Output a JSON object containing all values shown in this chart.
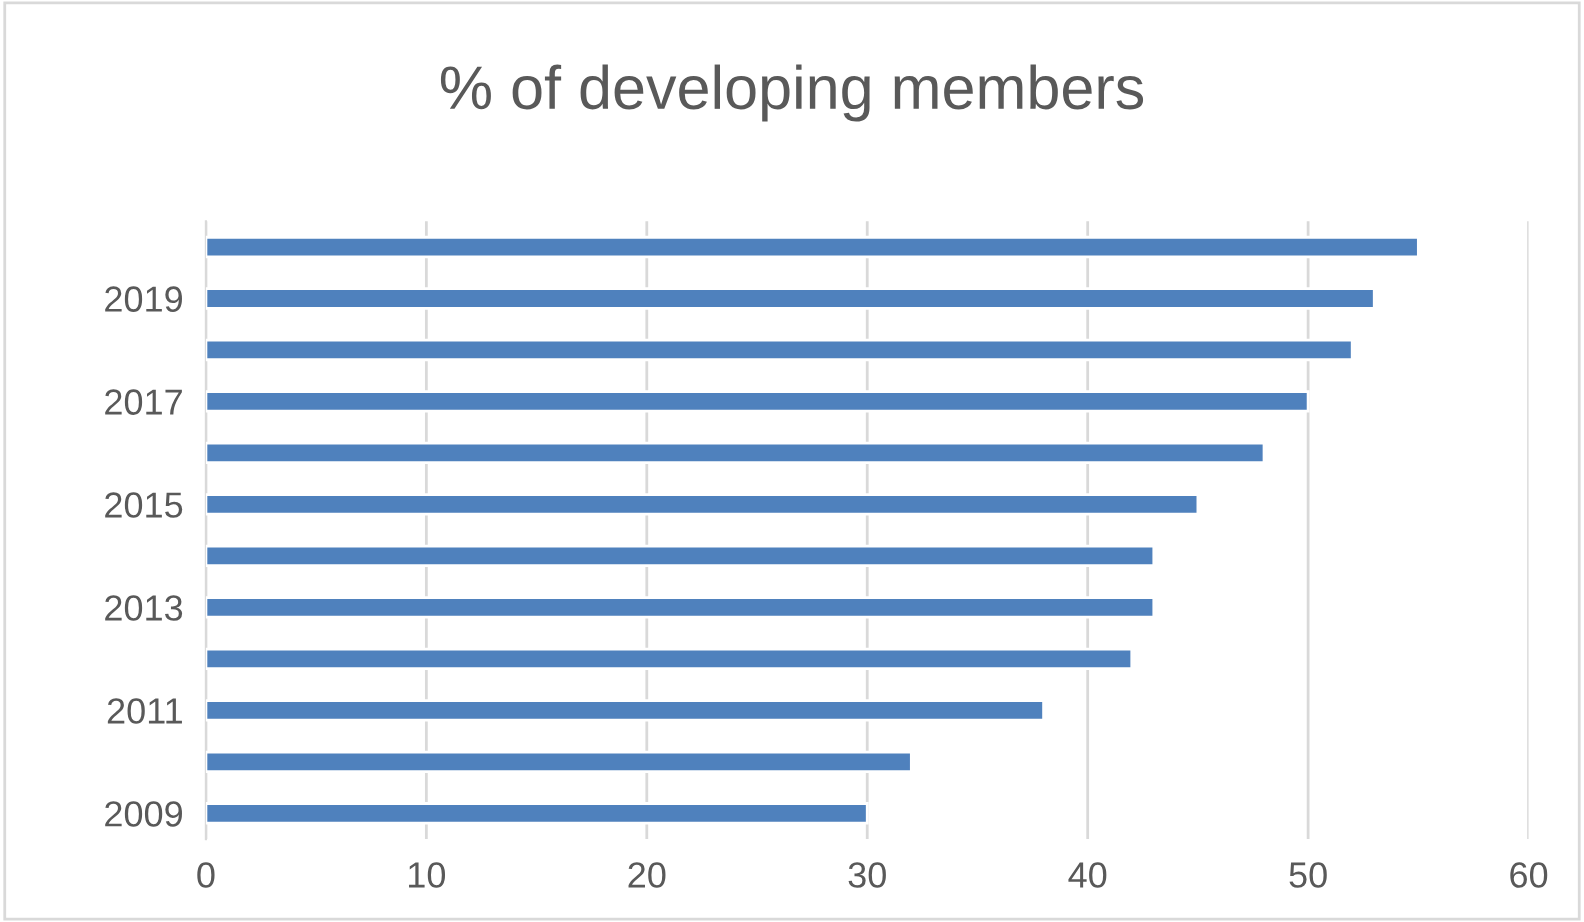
{
  "chart_data": {
    "type": "bar",
    "orientation": "horizontal",
    "title": "% of developing members",
    "categories": [
      null,
      "2019",
      null,
      "2017",
      null,
      "2015",
      null,
      "2013",
      null,
      "2011",
      null,
      "2009"
    ],
    "values": [
      55,
      53,
      52,
      50,
      48,
      45,
      43,
      43,
      42,
      38,
      32,
      30
    ],
    "color": "#4f81bd",
    "xlim": [
      0,
      60
    ],
    "xticks": [
      0,
      10,
      20,
      30,
      40,
      50,
      60
    ],
    "grid": "x"
  }
}
